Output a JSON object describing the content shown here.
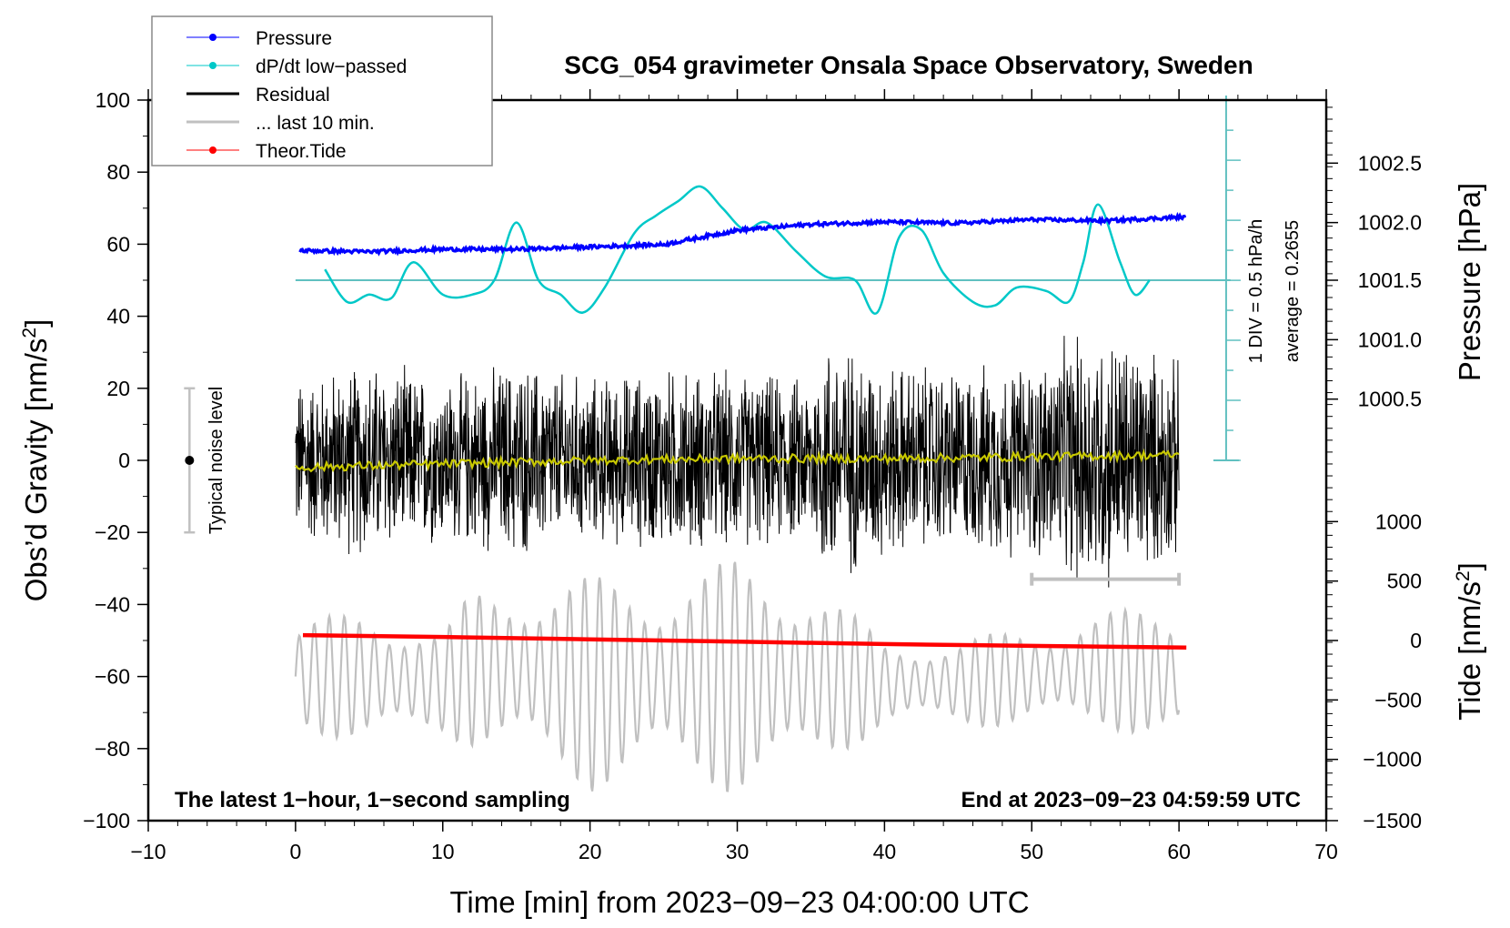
{
  "chart_data": {
    "type": "line",
    "title": "SCG_054 gravimeter Onsala Space Observatory, Sweden",
    "xlabel": "Time [min] from 2023−09−23 04:00:00 UTC",
    "ylabel": "Obs’d Gravity [nm/s²]",
    "ylabel_main": "Obs’d Gravity [nm/s",
    "ylabel_sup": "2",
    "ylabel_end": "]",
    "y2label": "Pressure [hPa]",
    "y3label_main": "Tide [nm/s",
    "y3label_sup": "2",
    "y3label_end": "]",
    "xlim": [
      -10,
      70
    ],
    "ylim": [
      -100,
      100
    ],
    "x_ticks": [
      -10,
      0,
      10,
      20,
      30,
      40,
      50,
      60,
      70
    ],
    "x_tick_labels": [
      "−10",
      "0",
      "10",
      "20",
      "30",
      "40",
      "50",
      "60",
      "70"
    ],
    "y_ticks": [
      100,
      80,
      60,
      40,
      20,
      0,
      -20,
      -40,
      -60,
      -80,
      -100
    ],
    "y_tick_labels": [
      "100",
      "80",
      "60",
      "40",
      "20",
      "0",
      "−20",
      "−40",
      "−60",
      "−80",
      "−100"
    ],
    "pressure_axis": {
      "ticks": [
        1002.5,
        1002.0,
        1001.5,
        1001.0,
        1000.5
      ],
      "tick_labels": [
        "1002.5",
        "1002.0",
        "1001.5",
        "1001.0",
        "1000.5"
      ],
      "gravity_equiv": [
        82.5,
        66,
        50,
        33.5,
        17
      ]
    },
    "tide_axis": {
      "ticks": [
        1000,
        500,
        0,
        -500,
        -1000,
        -1500
      ],
      "tick_labels": [
        "1000",
        "500",
        "0",
        "−500",
        "−1000",
        "−1500"
      ],
      "gravity_equiv": [
        -17,
        -33.5,
        -50,
        -66.5,
        -83,
        -100
      ]
    },
    "grid": false,
    "legend_position": "top-left",
    "legend": [
      {
        "label": "Pressure",
        "color": "#0000ff",
        "style": "line-dot"
      },
      {
        "label": "dP/dt low−passed",
        "color": "#00c8c8",
        "style": "line-dot"
      },
      {
        "label": "Residual",
        "color": "#000000",
        "style": "line"
      },
      {
        "label": "... last 10 min.",
        "color": "#c0c0c0",
        "style": "line"
      },
      {
        "label": "Theor.Tide",
        "color": "#ff0000",
        "style": "line-dot"
      }
    ],
    "series": [
      {
        "name": "Pressure",
        "color": "#0000ff",
        "unit": "hPa",
        "x": [
          0,
          5,
          10,
          15,
          20,
          25,
          30,
          35,
          40,
          45,
          50,
          55,
          60
        ],
        "values": [
          1001.75,
          1001.74,
          1001.76,
          1001.76,
          1001.78,
          1001.8,
          1001.92,
          1001.97,
          1001.99,
          1001.98,
          1002.01,
          1002.0,
          1002.03
        ]
      },
      {
        "name": "dP/dt low-passed",
        "color": "#00c8c8",
        "unit": "gravity-equivalent",
        "x": [
          2,
          3.5,
          5,
          6.5,
          8,
          10,
          12,
          13.5,
          15,
          16.5,
          18,
          19.5,
          21,
          23,
          24.5,
          26,
          27.5,
          29,
          30.5,
          32,
          34,
          36,
          38,
          39.5,
          41,
          42.5,
          44,
          46,
          47.5,
          49,
          51,
          52.5,
          53.5,
          54.5,
          56,
          57,
          58
        ],
        "values": [
          53,
          44,
          46,
          45,
          55,
          46,
          46,
          50,
          66,
          50,
          46,
          41,
          48,
          63,
          68,
          72,
          76,
          70,
          64,
          66,
          58,
          51,
          50,
          41,
          62,
          64,
          52,
          44,
          43,
          48,
          47,
          44,
          55,
          71,
          55,
          46,
          50
        ]
      },
      {
        "name": "Residual",
        "color": "#000000",
        "note": "1-second sampled high-frequency microseism noise, envelope amplitude",
        "x": [
          0,
          5,
          10,
          15,
          20,
          25,
          30,
          35,
          36,
          40,
          45,
          50,
          53,
          55,
          60
        ],
        "envelope": [
          25,
          30,
          25,
          30,
          25,
          28,
          27,
          25,
          38,
          30,
          28,
          30,
          38,
          40,
          30
        ]
      },
      {
        "name": "Residual (smoothed)",
        "color": "#c8c800",
        "x": [
          0,
          10,
          20,
          30,
          40,
          50,
          60
        ],
        "values": [
          -2,
          -1,
          0,
          0.5,
          0.5,
          1,
          1.5
        ]
      },
      {
        "name": "... last 10 min.",
        "color": "#c0c0c0",
        "note": "Oscillating trace, tide-axis scaled; envelope (gravity axis units)",
        "x": [
          0,
          5,
          10,
          12,
          15,
          20,
          25,
          30,
          35,
          40,
          45,
          50,
          55,
          60
        ],
        "envelope_center": [
          -60,
          -60,
          -62,
          -58,
          -58,
          -62,
          -60,
          -60,
          -60,
          -62,
          -62,
          -60,
          -58,
          -60
        ],
        "envelope_half": [
          14,
          20,
          14,
          22,
          25,
          30,
          27,
          33,
          27,
          12,
          12,
          14,
          16,
          20
        ]
      },
      {
        "name": "Theor.Tide",
        "color": "#ff0000",
        "unit": "nm/s²",
        "x": [
          0.5,
          10,
          20,
          30,
          40,
          50,
          60.5
        ],
        "values": [
          45,
          30,
          10,
          -10,
          -30,
          -45,
          -60
        ]
      }
    ],
    "scale_bar": {
      "label": "1 DIV = 0.5 hPa/h",
      "average_label": "average = 0.2655",
      "color": "#60c0c0"
    },
    "noise_indicator": {
      "label": "Typical noise level",
      "center": 0,
      "range": [
        -20,
        20
      ]
    },
    "window_bar": {
      "x_range": [
        50,
        60
      ],
      "color": "#c0c0c0"
    },
    "annotations": {
      "bottom_left": "The latest 1−hour, 1−second sampling",
      "bottom_right": "End at 2023−09−23 04:59:59 UTC"
    }
  }
}
